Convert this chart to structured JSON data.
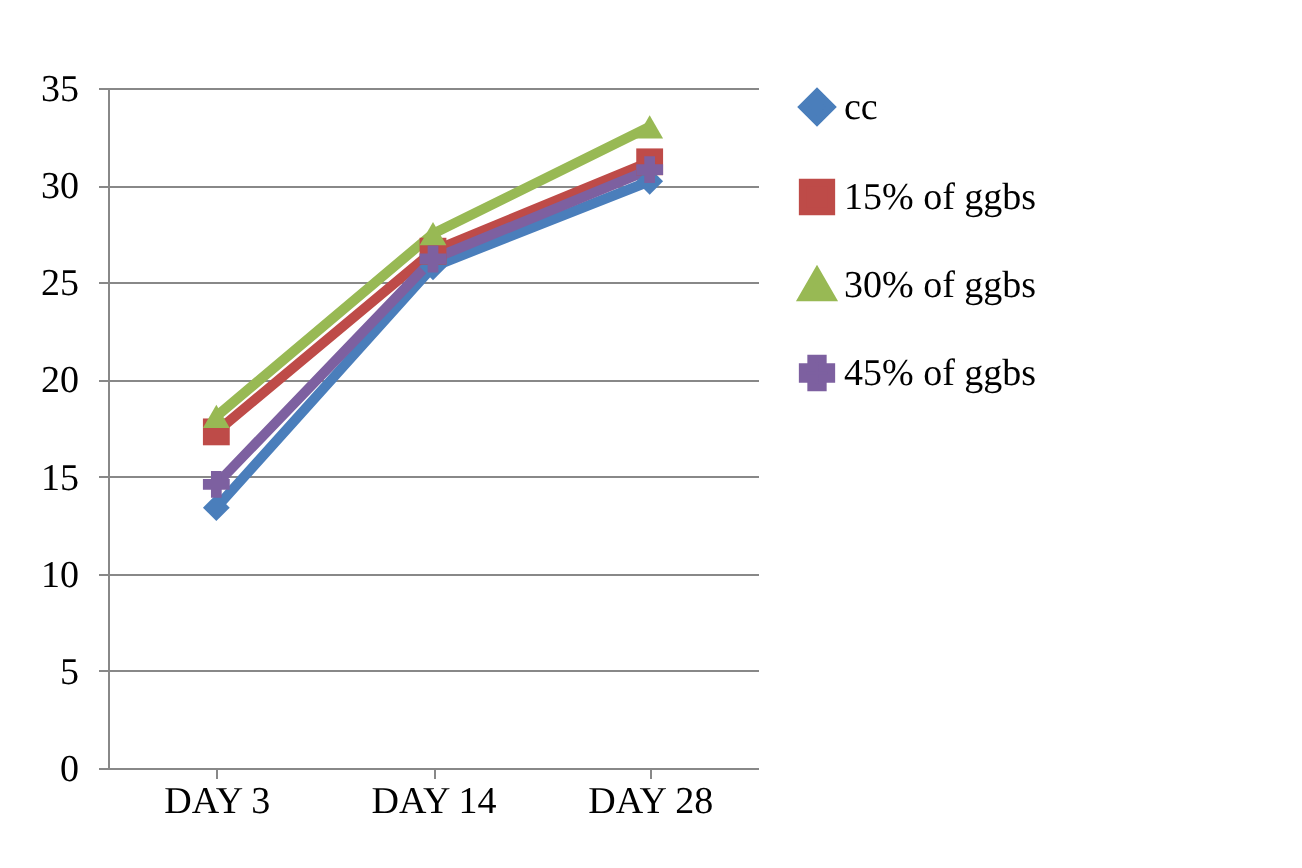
{
  "chart_data": {
    "type": "line",
    "categories": [
      "DAY 3",
      "DAY 14",
      "DAY 28"
    ],
    "series": [
      {
        "name": "cc",
        "color": "#4a7ebb",
        "marker": "diamond",
        "values": [
          13.4,
          25.8,
          30.2
        ]
      },
      {
        "name": "15% of ggbs",
        "color": "#be4b48",
        "marker": "square",
        "values": [
          17.3,
          26.6,
          31.2
        ]
      },
      {
        "name": "30% of ggbs",
        "color": "#98b954",
        "marker": "triangle",
        "values": [
          18.1,
          27.5,
          33.0
        ]
      },
      {
        "name": "45% of ggbs",
        "color": "#7d60a0",
        "marker": "cross",
        "values": [
          14.6,
          26.2,
          30.8
        ]
      }
    ],
    "ylim": [
      0,
      35
    ],
    "yticks": [
      0,
      5,
      10,
      15,
      20,
      25,
      30,
      35
    ],
    "grid": "y",
    "legend": "right"
  }
}
